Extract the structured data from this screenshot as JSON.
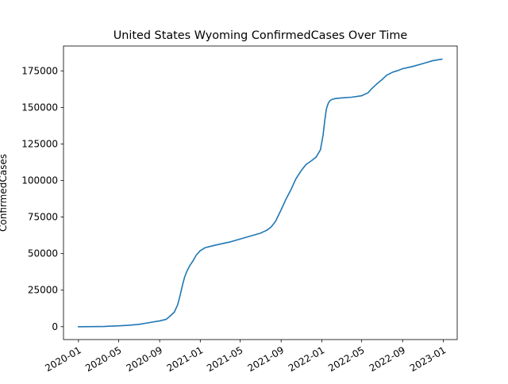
{
  "chart_data": {
    "type": "line",
    "title": "United States Wyoming ConfirmedCases Over Time",
    "xlabel": "",
    "ylabel": "ConfirmedCases",
    "xlim": [
      "2019-11-17",
      "2023-02-12"
    ],
    "ylim": [
      -8800,
      192000
    ],
    "x_ticks": [
      "2020-01",
      "2020-05",
      "2020-09",
      "2021-01",
      "2021-05",
      "2021-09",
      "2022-01",
      "2022-05",
      "2022-09",
      "2023-01"
    ],
    "y_ticks": [
      0,
      25000,
      50000,
      75000,
      100000,
      125000,
      150000,
      175000
    ],
    "y_tick_labels": [
      "0",
      "25000",
      "50000",
      "75000",
      "100000",
      "125000",
      "150000",
      "175000"
    ],
    "grid": false,
    "legend": "none",
    "color": "#1f77b4",
    "series": [
      {
        "x": [
          "2020-01-01",
          "2020-03-15",
          "2020-04-01",
          "2020-05-01",
          "2020-06-01",
          "2020-07-01",
          "2020-08-01",
          "2020-09-01",
          "2020-09-20",
          "2020-10-01",
          "2020-10-15",
          "2020-10-25",
          "2020-11-01",
          "2020-11-08",
          "2020-11-15",
          "2020-11-22",
          "2020-12-01",
          "2020-12-10",
          "2020-12-20",
          "2021-01-01",
          "2021-01-15",
          "2021-02-01",
          "2021-03-01",
          "2021-04-01",
          "2021-05-01",
          "2021-06-01",
          "2021-07-01",
          "2021-07-20",
          "2021-08-01",
          "2021-08-15",
          "2021-09-01",
          "2021-09-15",
          "2021-10-01",
          "2021-10-15",
          "2021-11-01",
          "2021-11-15",
          "2021-12-01",
          "2021-12-15",
          "2021-12-28",
          "2022-01-05",
          "2022-01-10",
          "2022-01-15",
          "2022-01-20",
          "2022-01-25",
          "2022-02-01",
          "2022-02-10",
          "2022-02-20",
          "2022-03-01",
          "2022-04-01",
          "2022-05-01",
          "2022-05-20",
          "2022-06-01",
          "2022-06-15",
          "2022-07-01",
          "2022-07-15",
          "2022-08-01",
          "2022-08-15",
          "2022-09-01",
          "2022-10-01",
          "2022-11-01",
          "2022-12-01",
          "2022-12-28"
        ],
        "values": [
          0,
          100,
          300,
          600,
          1000,
          1600,
          2800,
          4000,
          5000,
          7000,
          10000,
          15000,
          21000,
          28000,
          34000,
          38000,
          42000,
          45000,
          49000,
          52000,
          54000,
          55000,
          56500,
          58000,
          60000,
          62000,
          64000,
          66000,
          68000,
          72000,
          80000,
          87000,
          94000,
          101000,
          107000,
          111000,
          113500,
          116000,
          121000,
          131000,
          141000,
          149000,
          152500,
          154500,
          155500,
          156000,
          156300,
          156500,
          157000,
          158000,
          160000,
          163000,
          166000,
          169000,
          172000,
          174000,
          175000,
          176500,
          178000,
          180000,
          182000,
          183000
        ]
      }
    ]
  }
}
